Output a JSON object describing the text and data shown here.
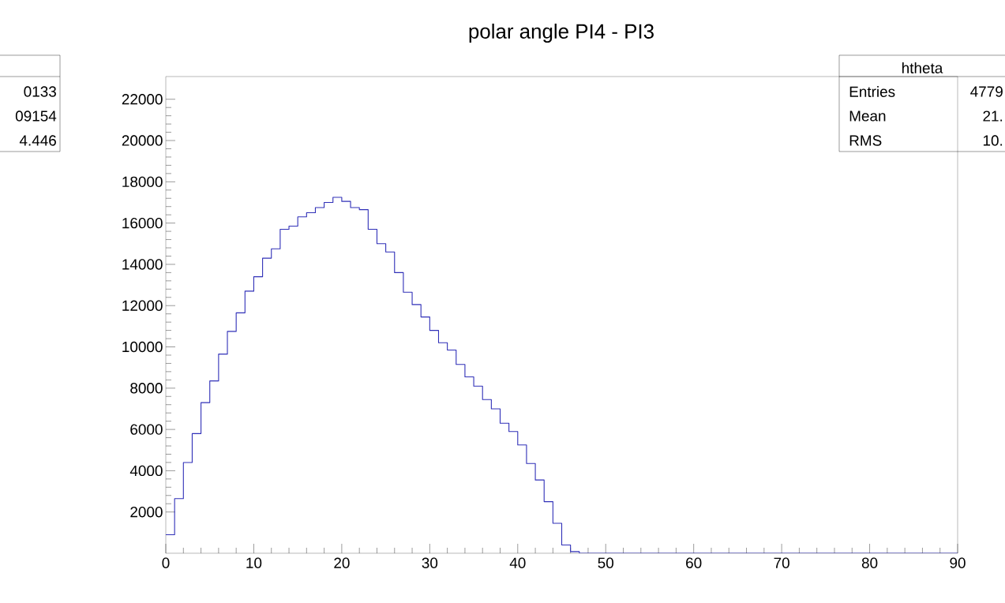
{
  "chart_data": {
    "type": "histogram",
    "title": "polar angle PI4 - PI3",
    "bins": [
      0,
      1,
      2,
      3,
      4,
      5,
      6,
      7,
      8,
      9,
      10,
      11,
      12,
      13,
      14,
      15,
      16,
      17,
      18,
      19,
      20,
      21,
      22,
      23,
      24,
      25,
      26,
      27,
      28,
      29,
      30,
      31,
      32,
      33,
      34,
      35,
      36,
      37,
      38,
      39,
      40,
      41,
      42,
      43,
      44,
      45,
      46,
      47,
      48,
      49,
      50,
      51,
      52,
      53,
      54,
      55,
      56,
      57,
      58,
      59,
      60,
      61,
      62,
      63,
      64,
      65,
      66,
      67,
      68,
      69,
      70,
      71,
      72,
      73,
      74,
      75,
      76,
      77,
      78,
      79,
      80,
      81,
      82,
      83,
      84,
      85,
      86,
      87,
      88,
      89,
      90
    ],
    "values": [
      900,
      2650,
      4400,
      5800,
      7300,
      8350,
      9650,
      10750,
      11650,
      12700,
      13400,
      14300,
      14750,
      15700,
      15850,
      16300,
      16500,
      16750,
      17000,
      17250,
      17050,
      16750,
      16650,
      15700,
      15000,
      14600,
      13600,
      12650,
      12050,
      11450,
      10800,
      10200,
      9850,
      9150,
      8550,
      8100,
      7450,
      7000,
      6300,
      5900,
      5250,
      4350,
      3550,
      2500,
      1450,
      400,
      80,
      0,
      0,
      0,
      0,
      0,
      0,
      0,
      0,
      0,
      0,
      0,
      0,
      0,
      0,
      0,
      0,
      0,
      0,
      0,
      0,
      0,
      0,
      0,
      0,
      0,
      0,
      0,
      0,
      0,
      0,
      0,
      0,
      0,
      0,
      0,
      0,
      0,
      0,
      0,
      0,
      0,
      0,
      0
    ],
    "color": "#3030b8",
    "xlim": [
      0,
      90
    ],
    "ylim": [
      0,
      23100
    ],
    "xticks": [
      0,
      10,
      20,
      30,
      40,
      50,
      60,
      70,
      80,
      90
    ],
    "yticks": [
      2000,
      4000,
      6000,
      8000,
      10000,
      12000,
      14000,
      16000,
      18000,
      20000,
      22000
    ],
    "annotations": [
      "0133",
      "09154",
      "4.446",
      "htheta",
      "Entries",
      "4779",
      "Mean",
      "21.",
      "RMS",
      "10."
    ]
  }
}
